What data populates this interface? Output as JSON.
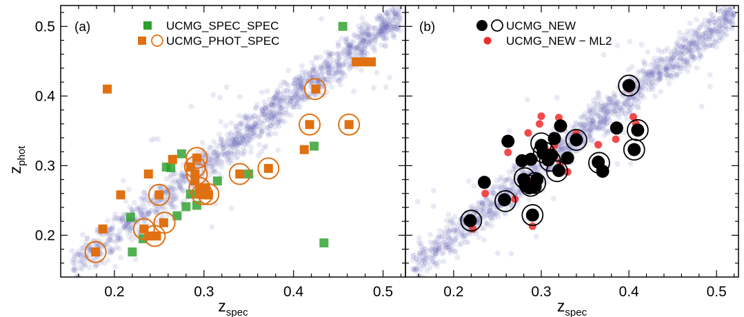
{
  "figure": {
    "ylabel": {
      "main": "z",
      "sub": "phot"
    }
  },
  "colors": {
    "background_cloud": "#5b5fb0",
    "green": "#2ca02c",
    "orange": "#e07012",
    "red": "#ee2c2c",
    "black": "#000000"
  },
  "chart_data": [
    {
      "type": "scatter",
      "panel_label": "(a)",
      "xlabel": {
        "main": "z",
        "sub": "spec"
      },
      "xlim": [
        0.14,
        0.525
      ],
      "ylim": [
        0.14,
        0.53
      ],
      "xticks": [
        {
          "value": 0.2,
          "label": "0.2"
        },
        {
          "value": 0.3,
          "label": "0.3"
        },
        {
          "value": 0.4,
          "label": "0.4"
        },
        {
          "value": 0.5,
          "label": "0.5"
        }
      ],
      "yticks": [
        {
          "value": 0.2,
          "label": "0.2"
        },
        {
          "value": 0.3,
          "label": "0.3"
        },
        {
          "value": 0.4,
          "label": "0.4"
        },
        {
          "value": 0.5,
          "label": "0.5"
        }
      ],
      "grid": false,
      "legend_position": "top-center",
      "legend": [
        {
          "label": "UCMG_SPEC_SPEC",
          "markers": [
            "green-square"
          ]
        },
        {
          "label": "UCMG_PHOT_SPEC",
          "markers": [
            "orange-square",
            "orange-open-circle"
          ]
        }
      ],
      "series": [
        {
          "name": "UCMG_SPEC_SPEC",
          "marker": "green-square",
          "points": [
            [
              0.218,
              0.226
            ],
            [
              0.22,
              0.176
            ],
            [
              0.232,
              0.195
            ],
            [
              0.258,
              0.298
            ],
            [
              0.263,
              0.297
            ],
            [
              0.27,
              0.228
            ],
            [
              0.275,
              0.317
            ],
            [
              0.28,
              0.241
            ],
            [
              0.285,
              0.259
            ],
            [
              0.292,
              0.243
            ],
            [
              0.295,
              0.259
            ],
            [
              0.315,
              0.278
            ],
            [
              0.35,
              0.288
            ],
            [
              0.423,
              0.328
            ],
            [
              0.434,
              0.189
            ],
            [
              0.455,
              0.5
            ]
          ]
        },
        {
          "name": "UCMG_PHOT_SPEC",
          "marker": "orange-square",
          "points": [
            [
              0.179,
              0.176
            ],
            [
              0.187,
              0.209
            ],
            [
              0.192,
              0.41
            ],
            [
              0.207,
              0.258
            ],
            [
              0.233,
              0.209
            ],
            [
              0.238,
              0.288
            ],
            [
              0.24,
              0.199
            ],
            [
              0.247,
              0.199
            ],
            [
              0.25,
              0.258
            ],
            [
              0.255,
              0.218
            ],
            [
              0.265,
              0.309
            ],
            [
              0.285,
              0.298
            ],
            [
              0.29,
              0.288
            ],
            [
              0.29,
              0.278
            ],
            [
              0.292,
              0.311
            ],
            [
              0.295,
              0.268
            ],
            [
              0.296,
              0.259
            ],
            [
              0.3,
              0.258
            ],
            [
              0.302,
              0.268
            ],
            [
              0.305,
              0.258
            ],
            [
              0.34,
              0.288
            ],
            [
              0.372,
              0.296
            ],
            [
              0.412,
              0.323
            ],
            [
              0.418,
              0.359
            ],
            [
              0.425,
              0.41
            ],
            [
              0.462,
              0.359
            ],
            [
              0.47,
              0.449
            ],
            [
              0.48,
              0.449
            ],
            [
              0.487,
              0.449
            ]
          ]
        },
        {
          "name": "UCMG_PHOT_SPEC",
          "marker": "orange-open-circle",
          "points": [
            [
              0.179,
              0.176
            ],
            [
              0.233,
              0.209
            ],
            [
              0.245,
              0.199
            ],
            [
              0.25,
              0.258
            ],
            [
              0.256,
              0.218
            ],
            [
              0.29,
              0.298
            ],
            [
              0.292,
              0.288
            ],
            [
              0.292,
              0.311
            ],
            [
              0.295,
              0.268
            ],
            [
              0.298,
              0.259
            ],
            [
              0.305,
              0.259
            ],
            [
              0.34,
              0.288
            ],
            [
              0.372,
              0.296
            ],
            [
              0.418,
              0.359
            ],
            [
              0.424,
              0.41
            ],
            [
              0.462,
              0.359
            ]
          ]
        }
      ]
    },
    {
      "type": "scatter",
      "panel_label": "(b)",
      "xlabel": {
        "main": "z",
        "sub": "spec"
      },
      "xlim": [
        0.145,
        0.525
      ],
      "ylim": [
        0.14,
        0.53
      ],
      "xticks": [
        {
          "value": 0.2,
          "label": "0.2"
        },
        {
          "value": 0.3,
          "label": "0.3"
        },
        {
          "value": 0.4,
          "label": "0.4"
        },
        {
          "value": 0.5,
          "label": "0.5"
        }
      ],
      "yticks": [
        {
          "value": 0.2,
          "label": "0.2"
        },
        {
          "value": 0.3,
          "label": "0.3"
        },
        {
          "value": 0.4,
          "label": "0.4"
        },
        {
          "value": 0.5,
          "label": "0.5"
        }
      ],
      "grid": false,
      "legend_position": "top-center",
      "legend": [
        {
          "label": "UCMG_NEW",
          "markers": [
            "black-filled-circle",
            "black-open-circle"
          ]
        },
        {
          "label": "UCMG_NEW − ML2",
          "markers": [
            "red-circle"
          ]
        }
      ],
      "series": [
        {
          "name": "UCMG_NEW − ML2",
          "marker": "red-circle",
          "points": [
            [
              0.215,
              0.221
            ],
            [
              0.222,
              0.209
            ],
            [
              0.236,
              0.26
            ],
            [
              0.258,
              0.252
            ],
            [
              0.26,
              0.249
            ],
            [
              0.262,
              0.319
            ],
            [
              0.27,
              0.252
            ],
            [
              0.28,
              0.28
            ],
            [
              0.285,
              0.347
            ],
            [
              0.287,
              0.278
            ],
            [
              0.29,
              0.213
            ],
            [
              0.292,
              0.309
            ],
            [
              0.298,
              0.36
            ],
            [
              0.3,
              0.371
            ],
            [
              0.305,
              0.323
            ],
            [
              0.31,
              0.31
            ],
            [
              0.315,
              0.329
            ],
            [
              0.32,
              0.369
            ],
            [
              0.322,
              0.305
            ],
            [
              0.33,
              0.291
            ],
            [
              0.34,
              0.346
            ],
            [
              0.342,
              0.339
            ],
            [
              0.365,
              0.33
            ],
            [
              0.368,
              0.305
            ],
            [
              0.385,
              0.338
            ],
            [
              0.4,
              0.41
            ],
            [
              0.405,
              0.37
            ],
            [
              0.408,
              0.36
            ]
          ]
        },
        {
          "name": "UCMG_NEW",
          "marker": "black-filled-circle",
          "points": [
            [
              0.219,
              0.221
            ],
            [
              0.235,
              0.276
            ],
            [
              0.258,
              0.251
            ],
            [
              0.262,
              0.335
            ],
            [
              0.278,
              0.307
            ],
            [
              0.28,
              0.28
            ],
            [
              0.282,
              0.271
            ],
            [
              0.286,
              0.268
            ],
            [
              0.288,
              0.309
            ],
            [
              0.29,
              0.229
            ],
            [
              0.292,
              0.27
            ],
            [
              0.295,
              0.28
            ],
            [
              0.3,
              0.329
            ],
            [
              0.302,
              0.318
            ],
            [
              0.308,
              0.308
            ],
            [
              0.312,
              0.315
            ],
            [
              0.315,
              0.339
            ],
            [
              0.32,
              0.293
            ],
            [
              0.322,
              0.357
            ],
            [
              0.33,
              0.311
            ],
            [
              0.34,
              0.337
            ],
            [
              0.365,
              0.305
            ],
            [
              0.37,
              0.292
            ],
            [
              0.386,
              0.354
            ],
            [
              0.4,
              0.415
            ],
            [
              0.406,
              0.323
            ],
            [
              0.41,
              0.351
            ]
          ]
        },
        {
          "name": "UCMG_NEW",
          "marker": "black-open-circle",
          "points": [
            [
              0.22,
              0.221
            ],
            [
              0.259,
              0.249
            ],
            [
              0.281,
              0.282
            ],
            [
              0.288,
              0.271
            ],
            [
              0.29,
              0.229
            ],
            [
              0.293,
              0.275
            ],
            [
              0.3,
              0.332
            ],
            [
              0.303,
              0.319
            ],
            [
              0.31,
              0.307
            ],
            [
              0.318,
              0.292
            ],
            [
              0.34,
              0.337
            ],
            [
              0.366,
              0.304
            ],
            [
              0.4,
              0.415
            ],
            [
              0.406,
              0.323
            ],
            [
              0.41,
              0.351
            ]
          ]
        }
      ]
    }
  ]
}
